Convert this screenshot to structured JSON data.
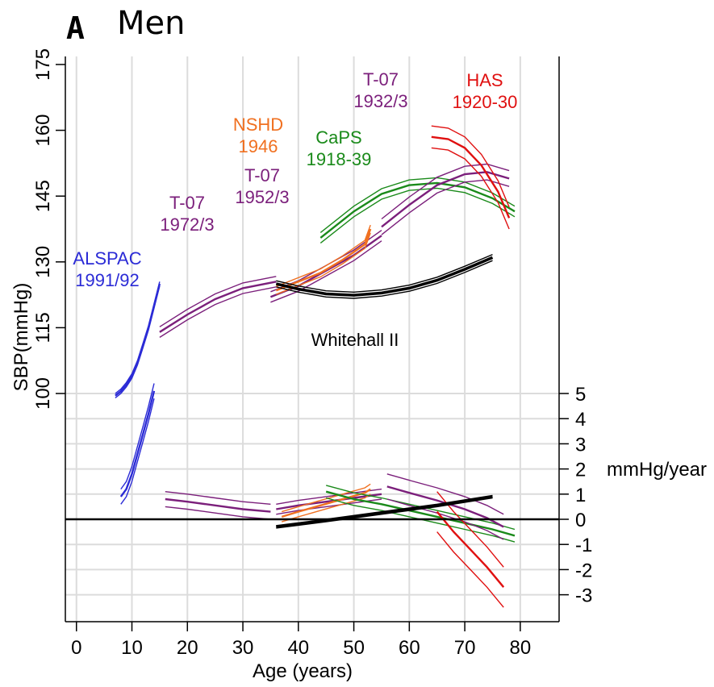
{
  "panel": {
    "letter": "A",
    "title": "Men"
  },
  "chart_data": {
    "type": "line",
    "xlabel": "Age (years)",
    "ylabel": "SBP(mmHg)",
    "y2label": "mmHg/year",
    "xlim": [
      -2,
      87
    ],
    "xticks": [
      "0",
      "10",
      "20",
      "30",
      "40",
      "50",
      "60",
      "70",
      "80"
    ],
    "ylim": [
      100,
      175
    ],
    "yticks": [
      "100",
      "115",
      "130",
      "145",
      "160",
      "175"
    ],
    "y2lim": [
      -4,
      5
    ],
    "y2ticks": [
      "5",
      "4",
      "3",
      "2",
      "1",
      "0",
      "-1",
      "-2",
      "-3"
    ],
    "grid": true,
    "colors": {
      "ALSPAC": "#2b2bd6",
      "T07": "#7b1f7b",
      "NSHD": "#f07020",
      "CaPS": "#1a8a1a",
      "HAS": "#e01010",
      "Whitehall": "#000000"
    },
    "annotations": [
      {
        "id": "alspac",
        "lines": [
          "ALSPAC",
          "1991/92"
        ],
        "color": "#2b2bd6"
      },
      {
        "id": "t07-1972",
        "lines": [
          "T-07",
          "1972/3"
        ],
        "color": "#7b1f7b"
      },
      {
        "id": "nshd",
        "lines": [
          "NSHD",
          "1946"
        ],
        "color": "#f07020"
      },
      {
        "id": "t07-1952",
        "lines": [
          "T-07",
          "1952/3"
        ],
        "color": "#7b1f7b"
      },
      {
        "id": "caps",
        "lines": [
          "CaPS",
          "1918-39"
        ],
        "color": "#1a8a1a"
      },
      {
        "id": "t07-1932",
        "lines": [
          "T-07",
          "1932/3"
        ],
        "color": "#7b1f7b"
      },
      {
        "id": "has",
        "lines": [
          "HAS",
          "1920-30"
        ],
        "color": "#e01010"
      },
      {
        "id": "whitehall",
        "lines": [
          "Whitehall II"
        ],
        "color": "#000000"
      }
    ],
    "sbp_series": [
      {
        "cohort": "ALSPAC",
        "x": [
          7,
          8,
          9,
          10,
          11,
          12,
          13,
          14,
          15
        ],
        "y": [
          99.5,
          100.5,
          102,
          104,
          107,
          111,
          115,
          120,
          125
        ],
        "ci": 0.5
      },
      {
        "cohort": "T07",
        "x": [
          15,
          20,
          25,
          30,
          36
        ],
        "y": [
          114,
          118,
          121.5,
          124,
          125.5
        ],
        "ci": 1.2
      },
      {
        "cohort": "T07",
        "x": [
          35,
          40,
          45,
          50,
          55
        ],
        "y": [
          122,
          124.5,
          128,
          131.5,
          136
        ],
        "ci": 1.2
      },
      {
        "cohort": "NSHD",
        "x": [
          36,
          40,
          44,
          48,
          52,
          53
        ],
        "y": [
          123.5,
          125.5,
          127.5,
          130.5,
          134,
          137.5
        ],
        "ci": 0.9
      },
      {
        "cohort": "CaPS",
        "x": [
          44,
          50,
          55,
          60,
          65,
          70,
          75,
          79
        ],
        "y": [
          135.5,
          141.5,
          145.5,
          147.5,
          148,
          147,
          144.5,
          141.5
        ],
        "ci": 1.2
      },
      {
        "cohort": "T07",
        "x": [
          55,
          60,
          65,
          70,
          74,
          78
        ],
        "y": [
          138,
          143,
          147.5,
          150,
          150.5,
          149
        ],
        "ci": 1.8
      },
      {
        "cohort": "HAS",
        "x": [
          64,
          67,
          70,
          73,
          76,
          78
        ],
        "y": [
          158.5,
          158,
          156,
          152,
          146,
          140
        ],
        "ci": 2.5
      },
      {
        "cohort": "Whitehall",
        "x": [
          36,
          40,
          45,
          50,
          55,
          60,
          65,
          70,
          75
        ],
        "y": [
          125,
          123.8,
          122.7,
          122.4,
          122.9,
          124,
          125.8,
          128.3,
          131
        ],
        "ci": 0.7
      }
    ],
    "slope_series": [
      {
        "cohort": "ALSPAC",
        "x": [
          8,
          9,
          10,
          11,
          12,
          13,
          14
        ],
        "y": [
          0.9,
          1.2,
          1.8,
          2.6,
          3.4,
          4.2,
          5.1
        ],
        "ci": 0.3
      },
      {
        "cohort": "T07",
        "x": [
          16,
          20,
          25,
          30,
          35
        ],
        "y": [
          0.8,
          0.7,
          0.55,
          0.4,
          0.3
        ],
        "ci": 0.3
      },
      {
        "cohort": "T07",
        "x": [
          36,
          40,
          45,
          50,
          55
        ],
        "y": [
          0.4,
          0.55,
          0.7,
          0.85,
          1.0
        ],
        "ci": 0.2
      },
      {
        "cohort": "NSHD",
        "x": [
          37,
          40,
          44,
          48,
          52,
          53
        ],
        "y": [
          0.1,
          0.3,
          0.55,
          0.8,
          1.05,
          1.2
        ],
        "ci": 0.2
      },
      {
        "cohort": "CaPS",
        "x": [
          45,
          50,
          55,
          60,
          65,
          70,
          75,
          79
        ],
        "y": [
          1.1,
          0.8,
          0.6,
          0.35,
          0.1,
          -0.15,
          -0.4,
          -0.65
        ],
        "ci": 0.25
      },
      {
        "cohort": "T07",
        "x": [
          56,
          60,
          65,
          70,
          74,
          77
        ],
        "y": [
          1.3,
          1.05,
          0.75,
          0.4,
          0.05,
          -0.3
        ],
        "ci": 0.5
      },
      {
        "cohort": "HAS",
        "x": [
          65,
          68,
          71,
          74,
          77
        ],
        "y": [
          0.3,
          -0.5,
          -1.2,
          -1.9,
          -2.7
        ],
        "ci": 0.8
      },
      {
        "cohort": "Whitehall",
        "x": [
          36,
          45,
          55,
          65,
          75
        ],
        "y": [
          -0.3,
          -0.05,
          0.25,
          0.55,
          0.9
        ],
        "ci": 0.05
      }
    ]
  }
}
